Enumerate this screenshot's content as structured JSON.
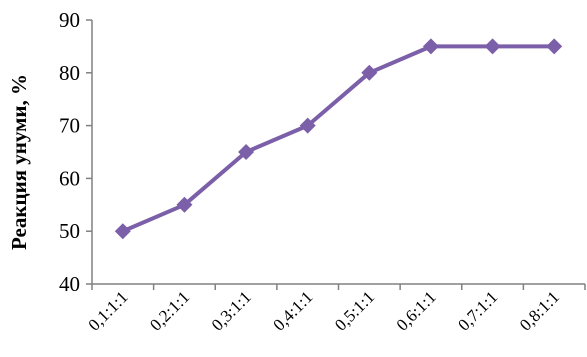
{
  "chart_data": {
    "type": "line",
    "title": "",
    "xlabel": "",
    "ylabel": "Реакция унуми, %",
    "categories": [
      "0,1:1:1",
      "0,2:1:1",
      "0,3:1:1",
      "0,4:1:1",
      "0,5:1:1",
      "0,6:1:1",
      "0,7:1:1",
      "0,8:1:1"
    ],
    "series": [
      {
        "values": [
          50,
          55,
          65,
          70,
          80,
          85,
          85,
          85
        ],
        "color": "#7b5fa8"
      }
    ],
    "ylim": [
      40,
      90
    ],
    "yticks": [
      40,
      50,
      60,
      70,
      80,
      90
    ],
    "grid": false,
    "legend": "none",
    "marker": "diamond"
  }
}
